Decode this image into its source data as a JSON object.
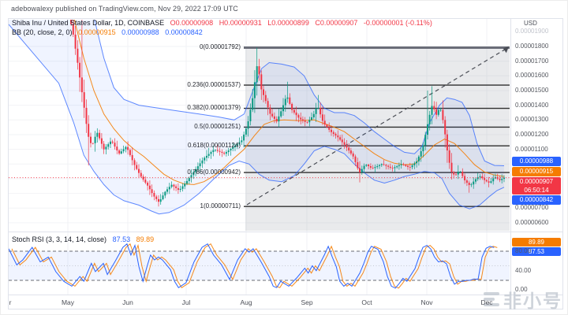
{
  "attribution": "adebowalexy published on TradingView.com, Nov 29, 2022 17:09 UTC",
  "symbol_legend": {
    "title": "Shiba Inu / United States Dollar, 1D, COINBASE",
    "open": "O0.00000908",
    "high": "H0.00000931",
    "low": "L0.00000899",
    "close": "C0.00000907",
    "change": "-0.00000001 (-0.11%)"
  },
  "bb_legend": {
    "label": "BB (20, close, 2, 0)",
    "basis": "0.00000915",
    "upper": "0.00000988",
    "lower": "0.00000842"
  },
  "stoch_legend": {
    "label": "Stoch RSI (3, 3, 14, 14, close)",
    "k": "87.53",
    "d": "89.89"
  },
  "price_axis": {
    "currency": "USD",
    "muted_top_tick": "0.00001900",
    "ticks": [
      {
        "label": "0.00001800",
        "value": 1.8
      },
      {
        "label": "0.00001700",
        "value": 1.7
      },
      {
        "label": "0.00001600",
        "value": 1.6
      },
      {
        "label": "0.00001500",
        "value": 1.5
      },
      {
        "label": "0.00001400",
        "value": 1.4
      },
      {
        "label": "0.00001300",
        "value": 1.3
      },
      {
        "label": "0.00001200",
        "value": 1.2
      },
      {
        "label": "0.00001100",
        "value": 1.1
      },
      {
        "label": "0.00000700",
        "value": 0.7
      },
      {
        "label": "0.00000600",
        "value": 0.6
      }
    ]
  },
  "price_tags": {
    "upper": "0.00000988",
    "basis": "0.00000915",
    "last": "0.00000907",
    "countdown": "06:50:14",
    "lower": "0.00000842"
  },
  "stoch_axis": {
    "ticks": [
      {
        "label": "80.00",
        "value": 80
      },
      {
        "label": "40.00",
        "value": 40
      },
      {
        "label": "0.00",
        "value": 0
      }
    ]
  },
  "stoch_tags": {
    "d": "89.89",
    "k": "87.53"
  },
  "time_axis": {
    "partial_left": "r",
    "months": [
      "May",
      "Jun",
      "Jul",
      "Aug",
      "Sep",
      "Oct",
      "Nov",
      "Dec"
    ]
  },
  "watermark": "非小号",
  "colors": {
    "up": "#089981",
    "down": "#f23645",
    "bb_band": "#2962ff",
    "bb_basis": "#f57c00",
    "stoch_k": "#2962ff",
    "stoch_d": "#f57c00",
    "last_price_line": "#f23645",
    "tag_blue": "#2962ff",
    "tag_orange": "#f57c00",
    "tag_red": "#f23645"
  },
  "chart_data": {
    "type": "candlestick",
    "title": "Shiba Inu / United States Dollar, 1D, COINBASE",
    "timeframe": "1D",
    "price_unit": "1e-5 USD",
    "x_unit": "fraction of plot width (Apr - Dec 2022)",
    "visible_price_range": [
      0.55,
      1.95
    ],
    "last_close": 0.907,
    "ohlc_last": {
      "open": 0.908,
      "high": 0.931,
      "low": 0.899,
      "close": 0.907
    },
    "bollinger_current": {
      "upper": 0.988,
      "basis": 0.915,
      "lower": 0.842
    },
    "fib_levels": [
      {
        "label": "0(0.00001792)",
        "level": 0,
        "value": 1.792
      },
      {
        "label": "0.236(0.00001537)",
        "level": 0.236,
        "value": 1.537
      },
      {
        "label": "0.382(0.00001379)",
        "level": 0.382,
        "value": 1.379
      },
      {
        "label": "0.5(0.00001251)",
        "level": 0.5,
        "value": 1.251
      },
      {
        "label": "0.618(0.00001124)",
        "level": 0.618,
        "value": 1.124
      },
      {
        "label": "0.786(0.00000942)",
        "level": 0.786,
        "value": 0.942
      },
      {
        "label": "1(0.00000711)",
        "level": 1,
        "value": 0.711
      }
    ],
    "close_path": [
      [
        0.0,
        2.75
      ],
      [
        0.09,
        2.3
      ],
      [
        0.118,
        2.05
      ],
      [
        0.128,
        1.9
      ],
      [
        0.138,
        1.68
      ],
      [
        0.148,
        1.45
      ],
      [
        0.158,
        1.2
      ],
      [
        0.166,
        1.12
      ],
      [
        0.176,
        1.22
      ],
      [
        0.19,
        1.1
      ],
      [
        0.205,
        1.16
      ],
      [
        0.22,
        1.07
      ],
      [
        0.235,
        1.12
      ],
      [
        0.25,
        1.0
      ],
      [
        0.263,
        0.92
      ],
      [
        0.278,
        0.85
      ],
      [
        0.29,
        0.78
      ],
      [
        0.3,
        0.74
      ],
      [
        0.312,
        0.81
      ],
      [
        0.325,
        0.86
      ],
      [
        0.34,
        0.82
      ],
      [
        0.355,
        0.88
      ],
      [
        0.37,
        0.95
      ],
      [
        0.39,
        1.04
      ],
      [
        0.41,
        1.1
      ],
      [
        0.43,
        1.07
      ],
      [
        0.45,
        1.12
      ],
      [
        0.465,
        1.16
      ],
      [
        0.477,
        1.27
      ],
      [
        0.487,
        1.45
      ],
      [
        0.497,
        1.7
      ],
      [
        0.503,
        1.52
      ],
      [
        0.512,
        1.44
      ],
      [
        0.522,
        1.34
      ],
      [
        0.535,
        1.29
      ],
      [
        0.545,
        1.37
      ],
      [
        0.555,
        1.47
      ],
      [
        0.565,
        1.37
      ],
      [
        0.58,
        1.31
      ],
      [
        0.595,
        1.28
      ],
      [
        0.608,
        1.33
      ],
      [
        0.616,
        1.4
      ],
      [
        0.628,
        1.28
      ],
      [
        0.643,
        1.22
      ],
      [
        0.658,
        1.18
      ],
      [
        0.673,
        1.12
      ],
      [
        0.688,
        1.05
      ],
      [
        0.7,
        0.94
      ],
      [
        0.712,
        1.0
      ],
      [
        0.725,
        0.97
      ],
      [
        0.745,
        1.0
      ],
      [
        0.765,
        0.97
      ],
      [
        0.785,
        1.0
      ],
      [
        0.8,
        0.975
      ],
      [
        0.815,
        1.02
      ],
      [
        0.827,
        1.12
      ],
      [
        0.838,
        1.3
      ],
      [
        0.846,
        1.41
      ],
      [
        0.853,
        1.33
      ],
      [
        0.861,
        1.39
      ],
      [
        0.868,
        1.28
      ],
      [
        0.876,
        1.08
      ],
      [
        0.883,
        0.95
      ],
      [
        0.891,
        0.92
      ],
      [
        0.9,
        0.96
      ],
      [
        0.91,
        0.89
      ],
      [
        0.921,
        0.85
      ],
      [
        0.93,
        0.89
      ],
      [
        0.94,
        0.92
      ],
      [
        0.95,
        0.89
      ],
      [
        0.96,
        0.87
      ],
      [
        0.97,
        0.915
      ],
      [
        0.98,
        0.89
      ],
      [
        0.989,
        0.907
      ]
    ],
    "bb_upper": [
      [
        0.0,
        3.9
      ],
      [
        0.1,
        3.1
      ],
      [
        0.13,
        2.7
      ],
      [
        0.15,
        2.35
      ],
      [
        0.17,
        2.0
      ],
      [
        0.19,
        1.72
      ],
      [
        0.21,
        1.52
      ],
      [
        0.23,
        1.44
      ],
      [
        0.26,
        1.4
      ],
      [
        0.3,
        1.38
      ],
      [
        0.34,
        1.36
      ],
      [
        0.38,
        1.34
      ],
      [
        0.42,
        1.32
      ],
      [
        0.45,
        1.3
      ],
      [
        0.47,
        1.34
      ],
      [
        0.49,
        1.52
      ],
      [
        0.505,
        1.65
      ],
      [
        0.52,
        1.69
      ],
      [
        0.545,
        1.68
      ],
      [
        0.57,
        1.66
      ],
      [
        0.59,
        1.6
      ],
      [
        0.61,
        1.47
      ],
      [
        0.63,
        1.38
      ],
      [
        0.65,
        1.35
      ],
      [
        0.67,
        1.35
      ],
      [
        0.69,
        1.33
      ],
      [
        0.71,
        1.28
      ],
      [
        0.73,
        1.22
      ],
      [
        0.75,
        1.17
      ],
      [
        0.77,
        1.12
      ],
      [
        0.79,
        1.08
      ],
      [
        0.81,
        1.07
      ],
      [
        0.825,
        1.12
      ],
      [
        0.84,
        1.28
      ],
      [
        0.86,
        1.4
      ],
      [
        0.875,
        1.45
      ],
      [
        0.89,
        1.44
      ],
      [
        0.905,
        1.42
      ],
      [
        0.92,
        1.33
      ],
      [
        0.935,
        1.14
      ],
      [
        0.95,
        1.02
      ],
      [
        0.97,
        0.99
      ],
      [
        0.989,
        0.988
      ]
    ],
    "bb_basis": [
      [
        0.0,
        2.95
      ],
      [
        0.1,
        2.32
      ],
      [
        0.13,
        2.0
      ],
      [
        0.15,
        1.72
      ],
      [
        0.17,
        1.5
      ],
      [
        0.19,
        1.34
      ],
      [
        0.21,
        1.24
      ],
      [
        0.23,
        1.16
      ],
      [
        0.25,
        1.1
      ],
      [
        0.27,
        1.05
      ],
      [
        0.29,
        0.99
      ],
      [
        0.31,
        0.93
      ],
      [
        0.33,
        0.89
      ],
      [
        0.35,
        0.865
      ],
      [
        0.37,
        0.86
      ],
      [
        0.39,
        0.88
      ],
      [
        0.41,
        0.92
      ],
      [
        0.43,
        0.975
      ],
      [
        0.45,
        1.04
      ],
      [
        0.47,
        1.1
      ],
      [
        0.49,
        1.19
      ],
      [
        0.51,
        1.27
      ],
      [
        0.53,
        1.295
      ],
      [
        0.55,
        1.3
      ],
      [
        0.58,
        1.295
      ],
      [
        0.61,
        1.3
      ],
      [
        0.63,
        1.275
      ],
      [
        0.65,
        1.25
      ],
      [
        0.67,
        1.22
      ],
      [
        0.69,
        1.17
      ],
      [
        0.71,
        1.12
      ],
      [
        0.73,
        1.07
      ],
      [
        0.75,
        1.03
      ],
      [
        0.77,
        1.005
      ],
      [
        0.79,
        0.995
      ],
      [
        0.81,
        1.0
      ],
      [
        0.83,
        1.06
      ],
      [
        0.85,
        1.13
      ],
      [
        0.87,
        1.17
      ],
      [
        0.89,
        1.14
      ],
      [
        0.91,
        1.07
      ],
      [
        0.93,
        0.995
      ],
      [
        0.95,
        0.945
      ],
      [
        0.97,
        0.925
      ],
      [
        0.989,
        0.915
      ]
    ],
    "bb_lower": [
      [
        0.0,
        1.95
      ],
      [
        0.1,
        1.55
      ],
      [
        0.13,
        1.28
      ],
      [
        0.15,
        1.06
      ],
      [
        0.17,
        0.95
      ],
      [
        0.19,
        0.86
      ],
      [
        0.21,
        0.79
      ],
      [
        0.23,
        0.75
      ],
      [
        0.26,
        0.72
      ],
      [
        0.285,
        0.68
      ],
      [
        0.3,
        0.66
      ],
      [
        0.32,
        0.67
      ],
      [
        0.35,
        0.72
      ],
      [
        0.38,
        0.8
      ],
      [
        0.41,
        0.9
      ],
      [
        0.44,
        0.99
      ],
      [
        0.46,
        1.02
      ],
      [
        0.48,
        1.0
      ],
      [
        0.5,
        0.93
      ],
      [
        0.52,
        0.89
      ],
      [
        0.545,
        0.88
      ],
      [
        0.57,
        0.92
      ],
      [
        0.59,
        1.0
      ],
      [
        0.61,
        1.09
      ],
      [
        0.63,
        1.12
      ],
      [
        0.65,
        1.1
      ],
      [
        0.67,
        1.07
      ],
      [
        0.69,
        1.0
      ],
      [
        0.71,
        0.94
      ],
      [
        0.73,
        0.89
      ],
      [
        0.75,
        0.87
      ],
      [
        0.77,
        0.89
      ],
      [
        0.79,
        0.915
      ],
      [
        0.81,
        0.93
      ],
      [
        0.83,
        0.95
      ],
      [
        0.85,
        0.94
      ],
      [
        0.865,
        0.9
      ],
      [
        0.88,
        0.8
      ],
      [
        0.9,
        0.72
      ],
      [
        0.92,
        0.695
      ],
      [
        0.94,
        0.72
      ],
      [
        0.96,
        0.78
      ],
      [
        0.975,
        0.82
      ],
      [
        0.989,
        0.842
      ]
    ],
    "wick_spikes": [
      [
        0.148,
        "high",
        2.12
      ],
      [
        0.158,
        "low",
        0.99
      ],
      [
        0.3,
        "low",
        0.711
      ],
      [
        0.497,
        "high",
        1.792
      ],
      [
        0.555,
        "high",
        1.56
      ],
      [
        0.616,
        "high",
        1.47
      ],
      [
        0.7,
        "low",
        0.875
      ],
      [
        0.838,
        "high",
        1.5
      ],
      [
        0.846,
        "high",
        1.53
      ],
      [
        0.921,
        "low",
        0.805
      ]
    ],
    "stoch_rsi_k": [
      [
        0.0,
        85
      ],
      [
        0.016,
        52
      ],
      [
        0.028,
        62
      ],
      [
        0.047,
        88
      ],
      [
        0.063,
        58
      ],
      [
        0.079,
        68
      ],
      [
        0.094,
        38
      ],
      [
        0.11,
        18
      ],
      [
        0.126,
        8
      ],
      [
        0.142,
        28
      ],
      [
        0.15,
        18
      ],
      [
        0.165,
        55
      ],
      [
        0.173,
        38
      ],
      [
        0.189,
        55
      ],
      [
        0.197,
        32
      ],
      [
        0.213,
        60
      ],
      [
        0.228,
        88
      ],
      [
        0.236,
        95
      ],
      [
        0.244,
        72
      ],
      [
        0.252,
        92
      ],
      [
        0.26,
        48
      ],
      [
        0.268,
        18
      ],
      [
        0.276,
        48
      ],
      [
        0.283,
        72
      ],
      [
        0.291,
        62
      ],
      [
        0.299,
        68
      ],
      [
        0.307,
        62
      ],
      [
        0.323,
        42
      ],
      [
        0.331,
        18
      ],
      [
        0.339,
        5
      ],
      [
        0.354,
        15
      ],
      [
        0.37,
        58
      ],
      [
        0.386,
        88
      ],
      [
        0.397,
        95
      ],
      [
        0.409,
        72
      ],
      [
        0.425,
        52
      ],
      [
        0.441,
        22
      ],
      [
        0.449,
        42
      ],
      [
        0.457,
        62
      ],
      [
        0.472,
        85
      ],
      [
        0.48,
        78
      ],
      [
        0.488,
        85
      ],
      [
        0.504,
        58
      ],
      [
        0.52,
        28
      ],
      [
        0.528,
        8
      ],
      [
        0.535,
        5
      ],
      [
        0.543,
        18
      ],
      [
        0.559,
        8
      ],
      [
        0.575,
        25
      ],
      [
        0.591,
        45
      ],
      [
        0.598,
        35
      ],
      [
        0.606,
        50
      ],
      [
        0.614,
        40
      ],
      [
        0.63,
        72
      ],
      [
        0.638,
        90
      ],
      [
        0.646,
        68
      ],
      [
        0.654,
        48
      ],
      [
        0.661,
        18
      ],
      [
        0.669,
        8
      ],
      [
        0.677,
        14
      ],
      [
        0.685,
        8
      ],
      [
        0.701,
        35
      ],
      [
        0.709,
        55
      ],
      [
        0.717,
        78
      ],
      [
        0.724,
        90
      ],
      [
        0.737,
        84
      ],
      [
        0.748,
        58
      ],
      [
        0.756,
        28
      ],
      [
        0.764,
        8
      ],
      [
        0.772,
        4
      ],
      [
        0.78,
        14
      ],
      [
        0.787,
        24
      ],
      [
        0.795,
        18
      ],
      [
        0.811,
        44
      ],
      [
        0.819,
        68
      ],
      [
        0.827,
        88
      ],
      [
        0.835,
        92
      ],
      [
        0.843,
        84
      ],
      [
        0.85,
        68
      ],
      [
        0.858,
        58
      ],
      [
        0.866,
        60
      ],
      [
        0.874,
        54
      ],
      [
        0.882,
        28
      ],
      [
        0.89,
        12
      ],
      [
        0.898,
        18
      ],
      [
        0.906,
        18
      ],
      [
        0.913,
        20
      ],
      [
        0.921,
        20
      ],
      [
        0.929,
        23
      ],
      [
        0.937,
        22
      ],
      [
        0.945,
        68
      ],
      [
        0.953,
        86
      ],
      [
        0.961,
        90
      ],
      [
        0.969,
        87.53
      ]
    ],
    "stoch_bands": {
      "overbought": 80,
      "oversold": 20,
      "middle": 50
    },
    "stoch_current": {
      "k": 87.53,
      "d": 89.89
    }
  }
}
